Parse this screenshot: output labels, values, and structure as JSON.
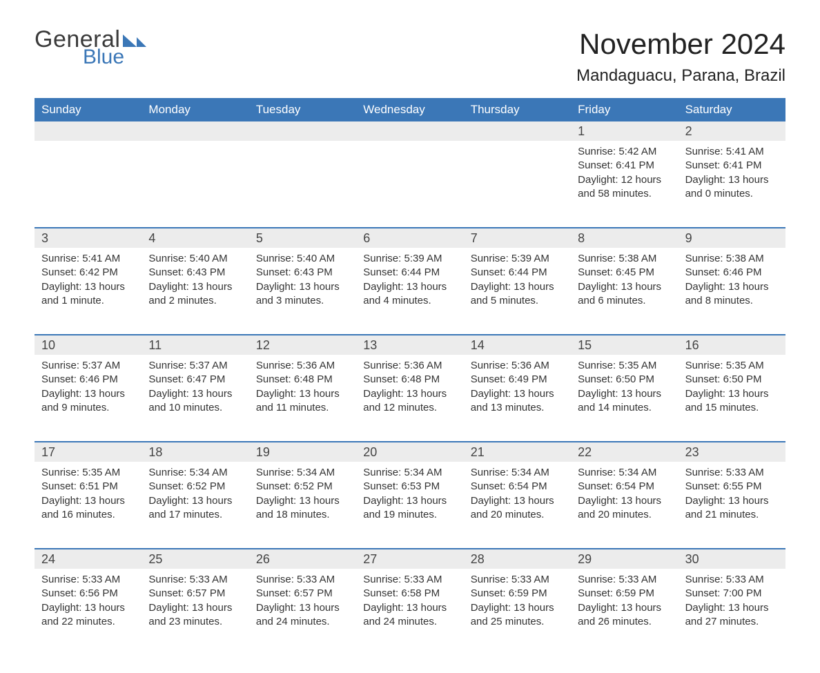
{
  "brand": {
    "word1": "General",
    "word2": "Blue",
    "logo_color": "#3b77b7"
  },
  "title": "November 2024",
  "location": "Mandaguacu, Parana, Brazil",
  "colors": {
    "header_bg": "#3b77b7",
    "header_fg": "#ffffff",
    "daynum_bg": "#ececec",
    "rule": "#3b77b7",
    "text": "#333333",
    "background": "#ffffff"
  },
  "typography": {
    "title_fontsize": 42,
    "location_fontsize": 24,
    "dow_fontsize": 17,
    "daynum_fontsize": 18,
    "body_fontsize": 15
  },
  "dow": [
    "Sunday",
    "Monday",
    "Tuesday",
    "Wednesday",
    "Thursday",
    "Friday",
    "Saturday"
  ],
  "weeks": [
    [
      null,
      null,
      null,
      null,
      null,
      {
        "n": "1",
        "sunrise": "5:42 AM",
        "sunset": "6:41 PM",
        "daylight": "12 hours and 58 minutes."
      },
      {
        "n": "2",
        "sunrise": "5:41 AM",
        "sunset": "6:41 PM",
        "daylight": "13 hours and 0 minutes."
      }
    ],
    [
      {
        "n": "3",
        "sunrise": "5:41 AM",
        "sunset": "6:42 PM",
        "daylight": "13 hours and 1 minute."
      },
      {
        "n": "4",
        "sunrise": "5:40 AM",
        "sunset": "6:43 PM",
        "daylight": "13 hours and 2 minutes."
      },
      {
        "n": "5",
        "sunrise": "5:40 AM",
        "sunset": "6:43 PM",
        "daylight": "13 hours and 3 minutes."
      },
      {
        "n": "6",
        "sunrise": "5:39 AM",
        "sunset": "6:44 PM",
        "daylight": "13 hours and 4 minutes."
      },
      {
        "n": "7",
        "sunrise": "5:39 AM",
        "sunset": "6:44 PM",
        "daylight": "13 hours and 5 minutes."
      },
      {
        "n": "8",
        "sunrise": "5:38 AM",
        "sunset": "6:45 PM",
        "daylight": "13 hours and 6 minutes."
      },
      {
        "n": "9",
        "sunrise": "5:38 AM",
        "sunset": "6:46 PM",
        "daylight": "13 hours and 8 minutes."
      }
    ],
    [
      {
        "n": "10",
        "sunrise": "5:37 AM",
        "sunset": "6:46 PM",
        "daylight": "13 hours and 9 minutes."
      },
      {
        "n": "11",
        "sunrise": "5:37 AM",
        "sunset": "6:47 PM",
        "daylight": "13 hours and 10 minutes."
      },
      {
        "n": "12",
        "sunrise": "5:36 AM",
        "sunset": "6:48 PM",
        "daylight": "13 hours and 11 minutes."
      },
      {
        "n": "13",
        "sunrise": "5:36 AM",
        "sunset": "6:48 PM",
        "daylight": "13 hours and 12 minutes."
      },
      {
        "n": "14",
        "sunrise": "5:36 AM",
        "sunset": "6:49 PM",
        "daylight": "13 hours and 13 minutes."
      },
      {
        "n": "15",
        "sunrise": "5:35 AM",
        "sunset": "6:50 PM",
        "daylight": "13 hours and 14 minutes."
      },
      {
        "n": "16",
        "sunrise": "5:35 AM",
        "sunset": "6:50 PM",
        "daylight": "13 hours and 15 minutes."
      }
    ],
    [
      {
        "n": "17",
        "sunrise": "5:35 AM",
        "sunset": "6:51 PM",
        "daylight": "13 hours and 16 minutes."
      },
      {
        "n": "18",
        "sunrise": "5:34 AM",
        "sunset": "6:52 PM",
        "daylight": "13 hours and 17 minutes."
      },
      {
        "n": "19",
        "sunrise": "5:34 AM",
        "sunset": "6:52 PM",
        "daylight": "13 hours and 18 minutes."
      },
      {
        "n": "20",
        "sunrise": "5:34 AM",
        "sunset": "6:53 PM",
        "daylight": "13 hours and 19 minutes."
      },
      {
        "n": "21",
        "sunrise": "5:34 AM",
        "sunset": "6:54 PM",
        "daylight": "13 hours and 20 minutes."
      },
      {
        "n": "22",
        "sunrise": "5:34 AM",
        "sunset": "6:54 PM",
        "daylight": "13 hours and 20 minutes."
      },
      {
        "n": "23",
        "sunrise": "5:33 AM",
        "sunset": "6:55 PM",
        "daylight": "13 hours and 21 minutes."
      }
    ],
    [
      {
        "n": "24",
        "sunrise": "5:33 AM",
        "sunset": "6:56 PM",
        "daylight": "13 hours and 22 minutes."
      },
      {
        "n": "25",
        "sunrise": "5:33 AM",
        "sunset": "6:57 PM",
        "daylight": "13 hours and 23 minutes."
      },
      {
        "n": "26",
        "sunrise": "5:33 AM",
        "sunset": "6:57 PM",
        "daylight": "13 hours and 24 minutes."
      },
      {
        "n": "27",
        "sunrise": "5:33 AM",
        "sunset": "6:58 PM",
        "daylight": "13 hours and 24 minutes."
      },
      {
        "n": "28",
        "sunrise": "5:33 AM",
        "sunset": "6:59 PM",
        "daylight": "13 hours and 25 minutes."
      },
      {
        "n": "29",
        "sunrise": "5:33 AM",
        "sunset": "6:59 PM",
        "daylight": "13 hours and 26 minutes."
      },
      {
        "n": "30",
        "sunrise": "5:33 AM",
        "sunset": "7:00 PM",
        "daylight": "13 hours and 27 minutes."
      }
    ]
  ],
  "labels": {
    "sunrise": "Sunrise:",
    "sunset": "Sunset:",
    "daylight": "Daylight:"
  }
}
